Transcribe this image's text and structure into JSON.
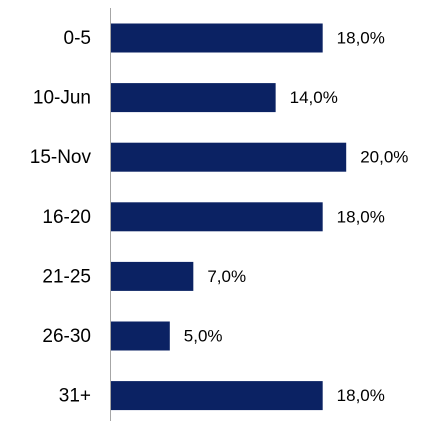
{
  "chart_data": {
    "type": "bar",
    "orientation": "horizontal",
    "categories": [
      "0-5",
      "10-Jun",
      "15-Nov",
      "16-20",
      "21-25",
      "26-30",
      "31+"
    ],
    "values": [
      18,
      14,
      20,
      18,
      7,
      5,
      18
    ],
    "value_labels": [
      "18,0%",
      "14,0%",
      "20,0%",
      "18,0%",
      "7,0%",
      "5,0%",
      "18,0%"
    ],
    "color": "#0b2263"
  }
}
